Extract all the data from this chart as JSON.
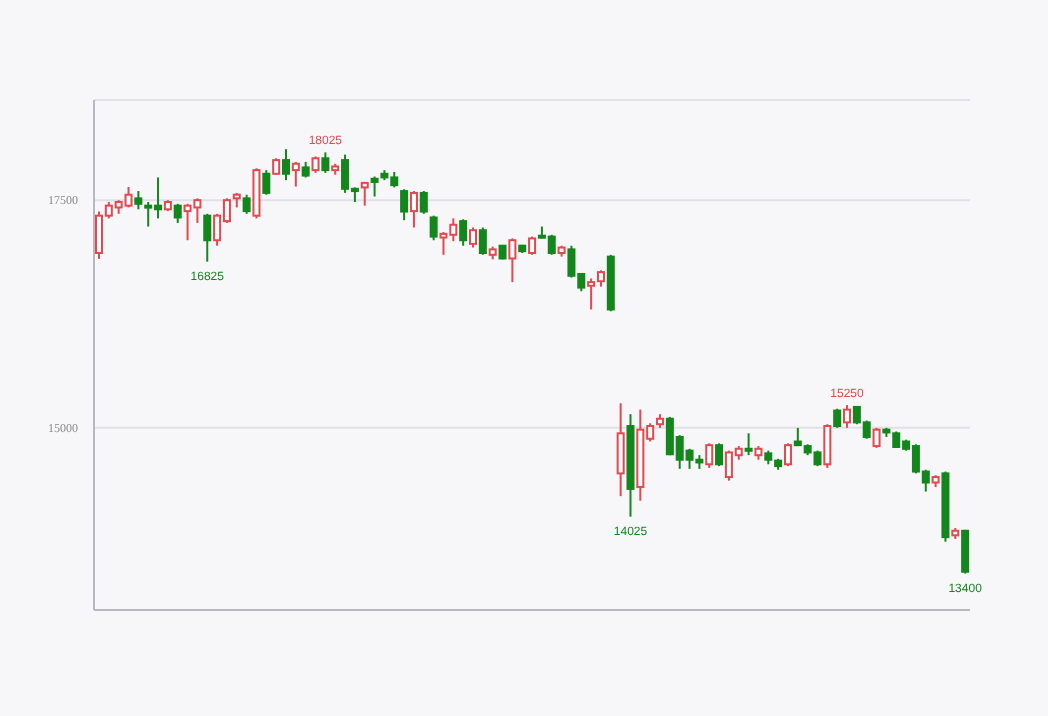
{
  "chart_data": {
    "type": "candlestick",
    "categories": [
      null,
      null,
      null,
      null,
      null,
      null,
      null,
      null,
      null,
      null,
      null,
      null,
      null,
      null,
      null,
      null,
      null,
      null,
      null,
      null,
      null,
      null,
      null,
      null,
      null,
      null,
      null,
      null,
      null,
      null,
      null,
      null,
      null,
      null,
      null,
      null,
      null,
      null,
      null,
      null,
      null,
      null,
      null,
      null,
      null,
      null,
      null,
      null,
      null,
      null,
      null,
      null,
      null,
      null,
      null,
      null,
      null,
      null,
      null,
      null,
      null,
      null,
      null,
      null,
      null,
      null,
      null,
      null,
      null,
      null,
      null,
      null,
      null,
      null,
      null,
      null,
      null,
      null,
      null,
      null,
      null,
      null,
      null,
      null,
      null,
      null,
      null,
      null,
      null
    ],
    "ohlc": [
      [
        16920,
        17375,
        16855,
        17330
      ],
      [
        17330,
        17480,
        17300,
        17440
      ],
      [
        17420,
        17500,
        17350,
        17480
      ],
      [
        17440,
        17645,
        17420,
        17560
      ],
      [
        17520,
        17600,
        17400,
        17460
      ],
      [
        17440,
        17480,
        17210,
        17420
      ],
      [
        17440,
        17750,
        17300,
        17400
      ],
      [
        17400,
        17500,
        17380,
        17480
      ],
      [
        17440,
        17460,
        17250,
        17310
      ],
      [
        17380,
        17460,
        17060,
        17440
      ],
      [
        17420,
        17520,
        17250,
        17500
      ],
      [
        17330,
        17350,
        16825,
        17060
      ],
      [
        17060,
        17350,
        17000,
        17330
      ],
      [
        17270,
        17520,
        17250,
        17500
      ],
      [
        17520,
        17580,
        17420,
        17560
      ],
      [
        17520,
        17560,
        17350,
        17380
      ],
      [
        17330,
        17850,
        17300,
        17830
      ],
      [
        17790,
        17830,
        17560,
        17580
      ],
      [
        17790,
        17960,
        17780,
        17940
      ],
      [
        17940,
        18060,
        17720,
        17790
      ],
      [
        17830,
        17920,
        17650,
        17900
      ],
      [
        17860,
        17920,
        17750,
        17770
      ],
      [
        17830,
        17980,
        17800,
        17960
      ],
      [
        17960,
        18025,
        17800,
        17830
      ],
      [
        17830,
        17900,
        17780,
        17870
      ],
      [
        17940,
        18000,
        17580,
        17625
      ],
      [
        17625,
        17640,
        17480,
        17600
      ],
      [
        17640,
        17700,
        17440,
        17690
      ],
      [
        17735,
        17760,
        17540,
        17700
      ],
      [
        17790,
        17830,
        17720,
        17750
      ],
      [
        17750,
        17810,
        17640,
        17665
      ],
      [
        17600,
        17620,
        17280,
        17375
      ],
      [
        17380,
        17600,
        17200,
        17580
      ],
      [
        17580,
        17600,
        17350,
        17375
      ],
      [
        17310,
        17330,
        17060,
        17100
      ],
      [
        17090,
        17150,
        16900,
        17130
      ],
      [
        17120,
        17300,
        17050,
        17230
      ],
      [
        17270,
        17290,
        17000,
        17060
      ],
      [
        17020,
        17200,
        16980,
        17170
      ],
      [
        17170,
        17200,
        16900,
        16920
      ],
      [
        16900,
        16990,
        16850,
        16960
      ],
      [
        17000,
        17000,
        16850,
        16860
      ],
      [
        16860,
        17080,
        16600,
        17060
      ],
      [
        17000,
        17010,
        16920,
        16940
      ],
      [
        16920,
        17100,
        16900,
        17080
      ],
      [
        17110,
        17210,
        17080,
        17090
      ],
      [
        17100,
        17120,
        16900,
        16920
      ],
      [
        16920,
        17000,
        16880,
        16980
      ],
      [
        16960,
        17000,
        16650,
        16670
      ],
      [
        16690,
        16700,
        16500,
        16540
      ],
      [
        16560,
        16640,
        16300,
        16600
      ],
      [
        16610,
        16730,
        16550,
        16710
      ],
      [
        16880,
        16900,
        16280,
        16300
      ],
      [
        14500,
        15270,
        14250,
        14940
      ],
      [
        15020,
        15150,
        14025,
        14330
      ],
      [
        14350,
        15200,
        14200,
        14980
      ],
      [
        14880,
        15050,
        14850,
        15020
      ],
      [
        15040,
        15150,
        15000,
        15100
      ],
      [
        15100,
        15120,
        14700,
        14710
      ],
      [
        14900,
        14920,
        14550,
        14650
      ],
      [
        14750,
        14770,
        14550,
        14650
      ],
      [
        14650,
        14700,
        14550,
        14620
      ],
      [
        14600,
        14830,
        14560,
        14810
      ],
      [
        14810,
        14830,
        14580,
        14600
      ],
      [
        14460,
        14750,
        14420,
        14730
      ],
      [
        14700,
        14800,
        14650,
        14770
      ],
      [
        14770,
        14940,
        14700,
        14750
      ],
      [
        14700,
        14800,
        14650,
        14770
      ],
      [
        14720,
        14750,
        14600,
        14650
      ],
      [
        14640,
        14660,
        14540,
        14580
      ],
      [
        14600,
        14830,
        14580,
        14810
      ],
      [
        14850,
        15000,
        14800,
        14810
      ],
      [
        14800,
        14820,
        14700,
        14730
      ],
      [
        14730,
        14750,
        14580,
        14600
      ],
      [
        14600,
        15040,
        14560,
        15020
      ],
      [
        15190,
        15210,
        15000,
        15020
      ],
      [
        15060,
        15250,
        15000,
        15200
      ],
      [
        15230,
        15240,
        15040,
        15060
      ],
      [
        15060,
        15080,
        14880,
        14900
      ],
      [
        14800,
        15000,
        14780,
        14980
      ],
      [
        14980,
        15000,
        14900,
        14950
      ],
      [
        14940,
        14960,
        14780,
        14790
      ],
      [
        14850,
        14870,
        14750,
        14770
      ],
      [
        14800,
        14820,
        14500,
        14520
      ],
      [
        14520,
        14540,
        14300,
        14400
      ],
      [
        14400,
        14480,
        14350,
        14460
      ],
      [
        14500,
        14520,
        13750,
        13800
      ],
      [
        13820,
        13900,
        13780,
        13870
      ],
      [
        13870,
        13880,
        13400,
        13420
      ]
    ],
    "colors": [
      "#e5474f",
      "#e5474f",
      "#e5474f",
      "#e5474f",
      "#13861c",
      "#13861c",
      "#13861c",
      "#e5474f",
      "#13861c",
      "#e5474f",
      "#e5474f",
      "#13861c",
      "#e5474f",
      "#e5474f",
      "#e5474f",
      "#13861c",
      "#e5474f",
      "#13861c",
      "#e5474f",
      "#13861c",
      "#e5474f",
      "#13861c",
      "#e5474f",
      "#13861c",
      "#e5474f",
      "#13861c",
      "#13861c",
      "#e5474f",
      "#13861c",
      "#13861c",
      "#13861c",
      "#13861c",
      "#e5474f",
      "#13861c",
      "#13861c",
      "#e5474f",
      "#e5474f",
      "#13861c",
      "#e5474f",
      "#13861c",
      "#e5474f",
      "#13861c",
      "#e5474f",
      "#13861c",
      "#e5474f",
      "#13861c",
      "#13861c",
      "#e5474f",
      "#13861c",
      "#13861c",
      "#e5474f",
      "#e5474f",
      "#13861c",
      "#e5474f",
      "#13861c",
      "#e5474f",
      "#e5474f",
      "#e5474f",
      "#13861c",
      "#13861c",
      "#13861c",
      "#13861c",
      "#e5474f",
      "#13861c",
      "#e5474f",
      "#e5474f",
      "#13861c",
      "#e5474f",
      "#13861c",
      "#13861c",
      "#e5474f",
      "#13861c",
      "#13861c",
      "#13861c",
      "#e5474f",
      "#13861c",
      "#e5474f",
      "#13861c",
      "#13861c",
      "#e5474f",
      "#13861c",
      "#13861c",
      "#13861c",
      "#13861c",
      "#13861c",
      "#e5474f",
      "#13861c",
      "#e5474f",
      "#13861c"
    ],
    "ylim": [
      13000,
      18600
    ],
    "yticks": [
      15000,
      17500
    ],
    "grid": "y",
    "annotations": [
      {
        "text": "18025",
        "y": 18025
      },
      {
        "text": "16825",
        "y": 16825
      },
      {
        "text": "14025",
        "y": 14025
      },
      {
        "text": "15250",
        "y": 15250
      },
      {
        "text": "13400",
        "y": 13400
      }
    ]
  }
}
